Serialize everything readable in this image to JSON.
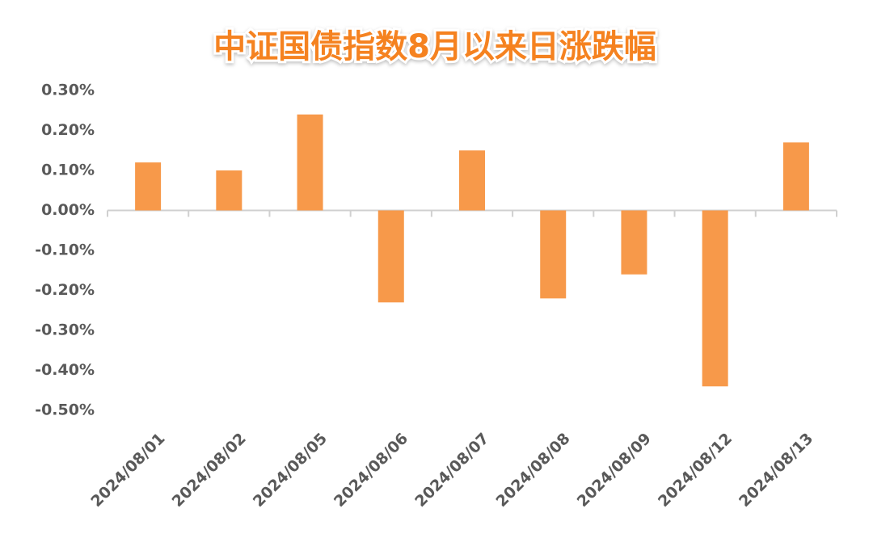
{
  "chart_data": {
    "type": "bar",
    "title": "中证国债指数8月以来日涨跌幅",
    "categories": [
      "2024/08/01",
      "2024/08/02",
      "2024/08/05",
      "2024/08/06",
      "2024/08/07",
      "2024/08/08",
      "2024/08/09",
      "2024/08/12",
      "2024/08/13"
    ],
    "values": [
      0.12,
      0.1,
      0.24,
      -0.23,
      0.15,
      -0.22,
      -0.16,
      -0.44,
      0.17
    ],
    "color": "#f7994a",
    "ylim": [
      -0.5,
      0.3
    ],
    "yticks": [
      {
        "value": 0.3,
        "label": "0.30%"
      },
      {
        "value": 0.2,
        "label": "0.20%"
      },
      {
        "value": 0.1,
        "label": "0.10%"
      },
      {
        "value": 0,
        "label": "0.00%"
      },
      {
        "value": -0.1,
        "label": "-0.10%"
      },
      {
        "value": -0.2,
        "label": "-0.20%"
      },
      {
        "value": -0.3,
        "label": "-0.30%"
      },
      {
        "value": -0.4,
        "label": "-0.40%"
      },
      {
        "value": -0.5,
        "label": "-0.50%"
      }
    ],
    "grid": false
  }
}
